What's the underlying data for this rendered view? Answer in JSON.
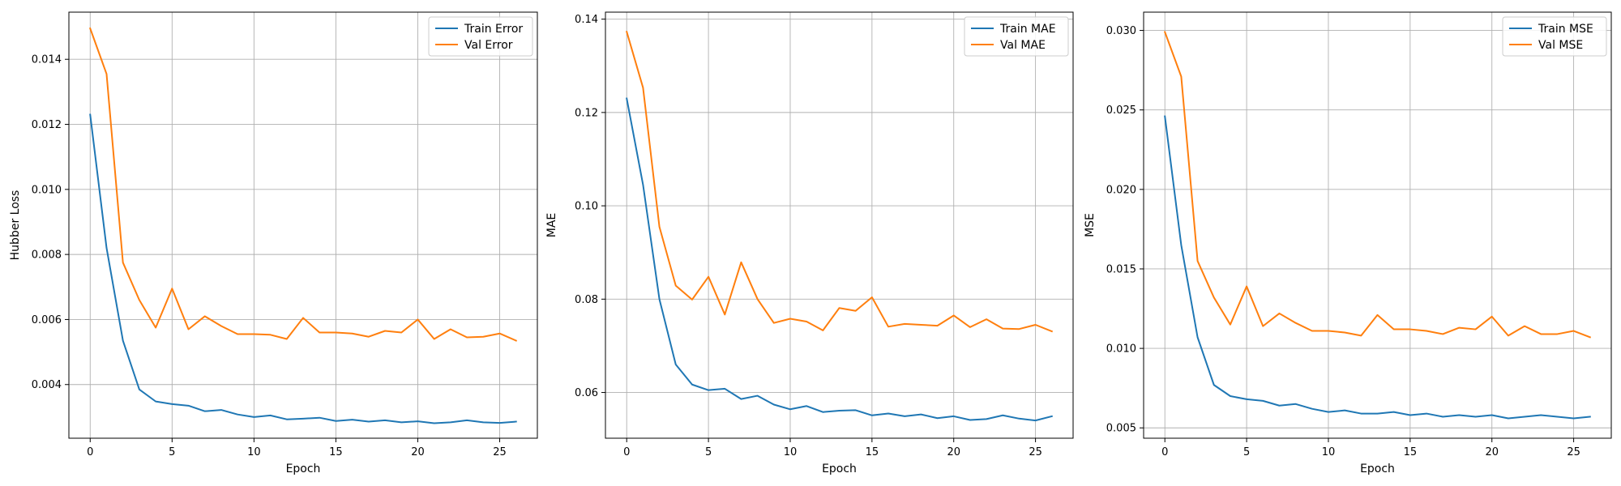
{
  "colors": {
    "train": "#1f77b4",
    "val": "#ff7f0e",
    "grid": "#b0b0b0"
  },
  "chart_data": [
    {
      "type": "line",
      "xlabel": "Epoch",
      "ylabel": "Hubber Loss",
      "xlim": [
        -1.3,
        27.3
      ],
      "ylim": [
        0.00235,
        0.01545
      ],
      "xticks": [
        0,
        5,
        10,
        15,
        20,
        25
      ],
      "yticks": [
        0.004,
        0.006,
        0.008,
        0.01,
        0.012,
        0.014
      ],
      "ytick_labels": [
        "0.004",
        "0.006",
        "0.008",
        "0.010",
        "0.012",
        "0.014"
      ],
      "legend_position": "top-right",
      "grid": true,
      "x": [
        0,
        1,
        2,
        3,
        4,
        5,
        6,
        7,
        8,
        9,
        10,
        11,
        12,
        13,
        14,
        15,
        16,
        17,
        18,
        19,
        20,
        21,
        22,
        23,
        24,
        25,
        26
      ],
      "series": [
        {
          "name": "Train Error",
          "color": "#1f77b4",
          "values": [
            0.0123,
            0.0082,
            0.00535,
            0.00385,
            0.00348,
            0.0034,
            0.00335,
            0.00318,
            0.00322,
            0.00308,
            0.003,
            0.00305,
            0.00293,
            0.00295,
            0.00298,
            0.00288,
            0.00292,
            0.00286,
            0.0029,
            0.00284,
            0.00287,
            0.00281,
            0.00284,
            0.0029,
            0.00284,
            0.00282,
            0.00286
          ]
        },
        {
          "name": "Val Error",
          "color": "#ff7f0e",
          "values": [
            0.01495,
            0.01355,
            0.00775,
            0.0066,
            0.00575,
            0.00695,
            0.0057,
            0.0061,
            0.0058,
            0.00555,
            0.00555,
            0.00553,
            0.0054,
            0.00605,
            0.0056,
            0.0056,
            0.00557,
            0.00547,
            0.00565,
            0.0056,
            0.006,
            0.0054,
            0.0057,
            0.00545,
            0.00547,
            0.00557,
            0.00535
          ]
        }
      ]
    },
    {
      "type": "line",
      "xlabel": "Epoch",
      "ylabel": "MAE",
      "xlim": [
        -1.3,
        27.3
      ],
      "ylim": [
        0.0502,
        0.1415
      ],
      "xticks": [
        0,
        5,
        10,
        15,
        20,
        25
      ],
      "yticks": [
        0.06,
        0.08,
        0.1,
        0.12,
        0.14
      ],
      "ytick_labels": [
        "0.06",
        "0.08",
        "0.10",
        "0.12",
        "0.14"
      ],
      "legend_position": "top-right",
      "grid": true,
      "x": [
        0,
        1,
        2,
        3,
        4,
        5,
        6,
        7,
        8,
        9,
        10,
        11,
        12,
        13,
        14,
        15,
        16,
        17,
        18,
        19,
        20,
        21,
        22,
        23,
        24,
        25,
        26
      ],
      "series": [
        {
          "name": "Train MAE",
          "color": "#1f77b4",
          "values": [
            0.123,
            0.1045,
            0.08,
            0.066,
            0.0617,
            0.0605,
            0.0608,
            0.0586,
            0.0593,
            0.0574,
            0.0564,
            0.0571,
            0.0558,
            0.0561,
            0.0562,
            0.0551,
            0.0555,
            0.0549,
            0.0553,
            0.0545,
            0.0549,
            0.0541,
            0.0543,
            0.0551,
            0.0544,
            0.054,
            0.0549
          ]
        },
        {
          "name": "Val MAE",
          "color": "#ff7f0e",
          "values": [
            0.1373,
            0.1253,
            0.0955,
            0.0829,
            0.0799,
            0.0848,
            0.0767,
            0.0879,
            0.08,
            0.0749,
            0.0758,
            0.0752,
            0.0733,
            0.0781,
            0.0775,
            0.0804,
            0.0741,
            0.0747,
            0.0745,
            0.0743,
            0.0765,
            0.074,
            0.0757,
            0.0737,
            0.0736,
            0.0745,
            0.0731
          ]
        }
      ]
    },
    {
      "type": "line",
      "xlabel": "Epoch",
      "ylabel": "MSE",
      "xlim": [
        -1.3,
        27.3
      ],
      "ylim": [
        0.00435,
        0.03115
      ],
      "xticks": [
        0,
        5,
        10,
        15,
        20,
        25
      ],
      "yticks": [
        0.005,
        0.01,
        0.015,
        0.02,
        0.025,
        0.03
      ],
      "ytick_labels": [
        "0.005",
        "0.010",
        "0.015",
        "0.020",
        "0.025",
        "0.030"
      ],
      "legend_position": "top-right",
      "grid": true,
      "x": [
        0,
        1,
        2,
        3,
        4,
        5,
        6,
        7,
        8,
        9,
        10,
        11,
        12,
        13,
        14,
        15,
        16,
        17,
        18,
        19,
        20,
        21,
        22,
        23,
        24,
        25,
        26
      ],
      "series": [
        {
          "name": "Train MSE",
          "color": "#1f77b4",
          "values": [
            0.0246,
            0.0165,
            0.0107,
            0.0077,
            0.007,
            0.0068,
            0.0067,
            0.0064,
            0.0065,
            0.0062,
            0.006,
            0.0061,
            0.0059,
            0.0059,
            0.006,
            0.0058,
            0.0059,
            0.0057,
            0.0058,
            0.0057,
            0.0058,
            0.0056,
            0.0057,
            0.0058,
            0.0057,
            0.0056,
            0.0057
          ]
        },
        {
          "name": "Val MSE",
          "color": "#ff7f0e",
          "values": [
            0.0299,
            0.0271,
            0.0155,
            0.0132,
            0.0115,
            0.0139,
            0.0114,
            0.0122,
            0.0116,
            0.0111,
            0.0111,
            0.011,
            0.0108,
            0.0121,
            0.0112,
            0.0112,
            0.0111,
            0.0109,
            0.0113,
            0.0112,
            0.012,
            0.0108,
            0.0114,
            0.0109,
            0.0109,
            0.0111,
            0.0107
          ]
        }
      ]
    }
  ]
}
